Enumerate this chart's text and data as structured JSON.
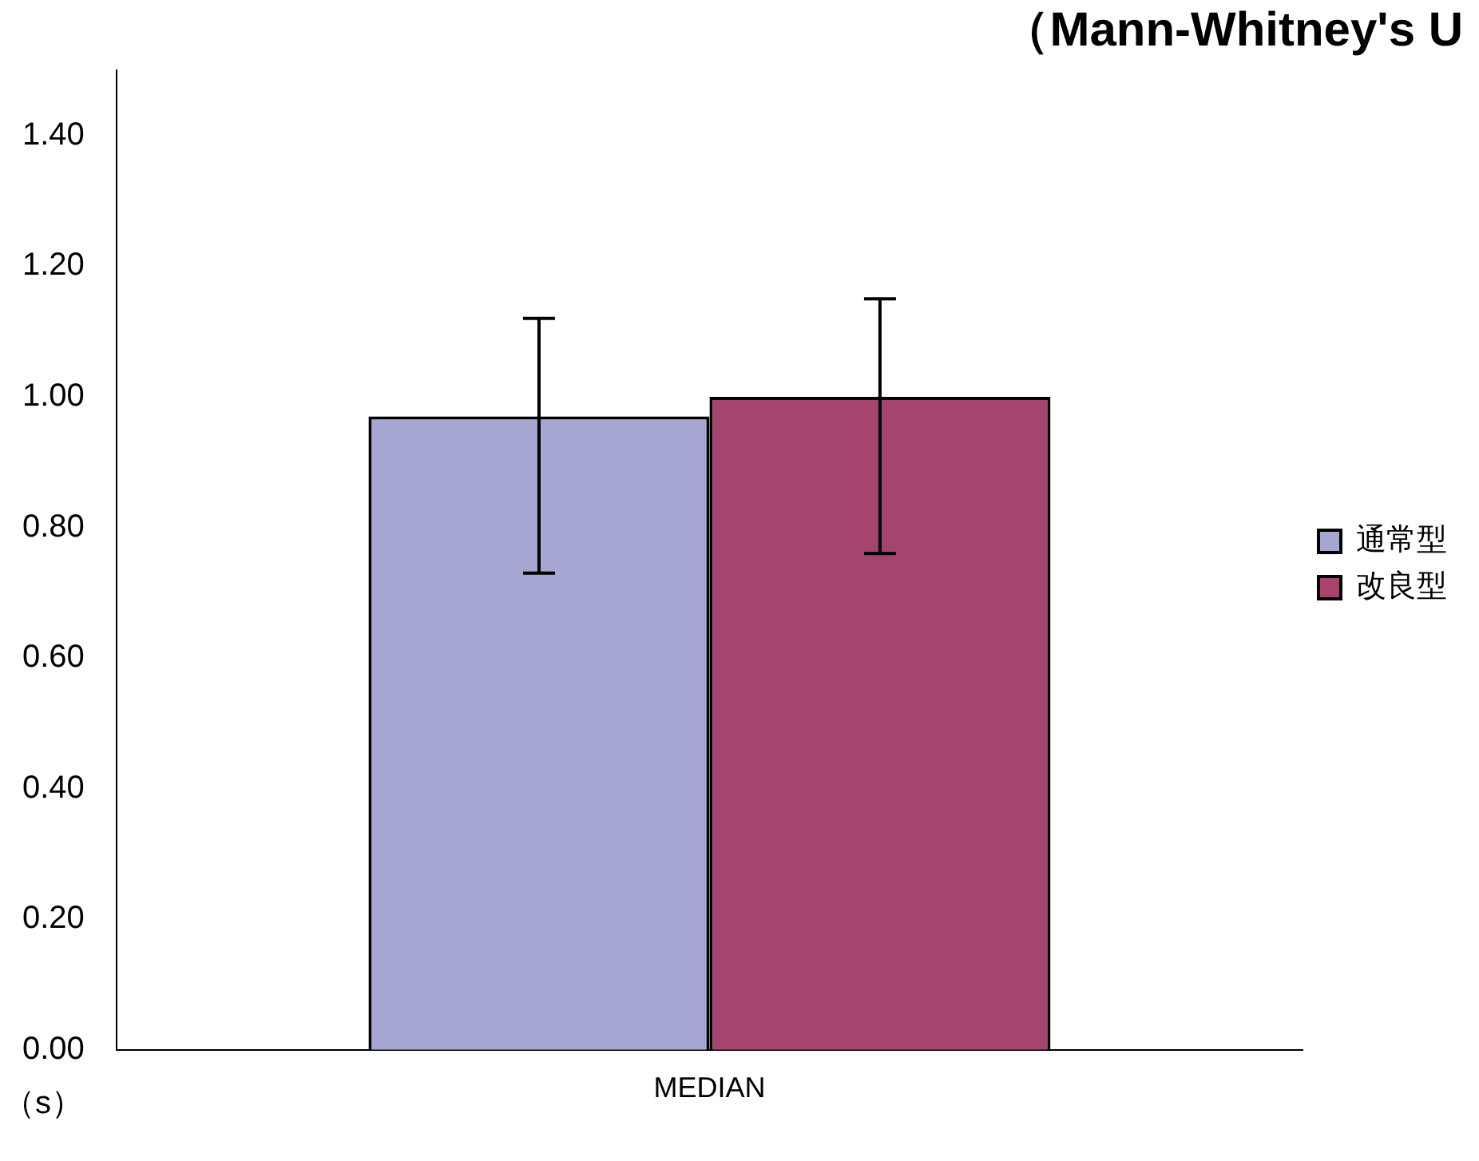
{
  "chart_data": {
    "type": "bar",
    "title": "（Mann-Whitney's U",
    "ylabel": "（s）",
    "categories": [
      "MEDIAN"
    ],
    "series": [
      {
        "name": "通常型",
        "color": "#a6a6d3",
        "values": [
          0.97
        ],
        "errors": [
          [
            0.73,
            1.12
          ]
        ]
      },
      {
        "name": "改良型",
        "color": "#a5456f",
        "values": [
          1.0
        ],
        "errors": [
          [
            0.76,
            1.15
          ]
        ]
      }
    ],
    "ylim": [
      0,
      1.5
    ],
    "yticks": [
      {
        "value": 0,
        "label": "0.00"
      },
      {
        "value": 0.2,
        "label": "0.20"
      },
      {
        "value": 0.4,
        "label": "0.40"
      },
      {
        "value": 0.6,
        "label": "0.60"
      },
      {
        "value": 0.8,
        "label": "0.80"
      },
      {
        "value": 1,
        "label": "1.00"
      },
      {
        "value": 1.2,
        "label": "1.20"
      },
      {
        "value": 1.4,
        "label": "1.40"
      }
    ],
    "grid": false,
    "legend": "right"
  }
}
